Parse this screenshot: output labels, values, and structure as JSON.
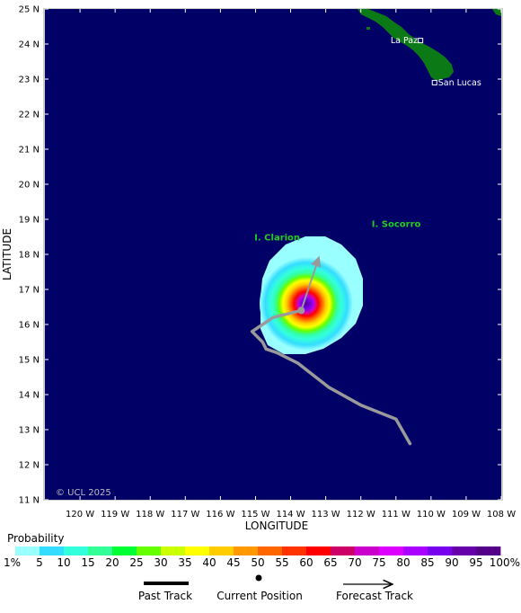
{
  "map": {
    "lat_labels": [
      "25 N",
      "24 N",
      "23 N",
      "22 N",
      "21 N",
      "20 N",
      "19 N",
      "18 N",
      "17 N",
      "16 N",
      "15 N",
      "14 N",
      "13 N",
      "12 N",
      "11 N"
    ],
    "lon_labels": [
      "120 W",
      "119 W",
      "118 W",
      "117 W",
      "116 W",
      "115 W",
      "114 W",
      "113 W",
      "112 W",
      "111 W",
      "110 W",
      "109 W",
      "108 W"
    ],
    "xlabel": "LONGITUDE",
    "ylabel": "LATITUDE",
    "extent": {
      "lon_west": -121,
      "lon_east": -108,
      "lat_south": 11,
      "lat_north": 25
    },
    "colors": {
      "ocean": "#000066",
      "land": "#0b7a16",
      "track": "#9a9a9a",
      "island_label": "#22cc22",
      "frame": "#cccccc"
    },
    "places": {
      "la_paz": {
        "label": "La Paz",
        "lon": -110.3,
        "lat": 24.1
      },
      "san_lucas": {
        "label": "San Lucas",
        "lon": -109.9,
        "lat": 22.9
      },
      "clarion": {
        "label": "I. Clarion",
        "lon": -114.7,
        "lat": 18.3
      },
      "socorro": {
        "label": "I. Socorro",
        "lon": -111.0,
        "lat": 18.7
      }
    },
    "copyright": "© UCL 2025",
    "past_track": [
      [
        -110.6,
        12.6
      ],
      [
        -111.0,
        13.3
      ],
      [
        -112.0,
        13.7
      ],
      [
        -112.9,
        14.2
      ],
      [
        -113.8,
        14.9
      ],
      [
        -114.4,
        15.2
      ],
      [
        -114.7,
        15.3
      ],
      [
        -114.8,
        15.5
      ],
      [
        -115.1,
        15.8
      ],
      [
        -114.8,
        16.0
      ],
      [
        -114.5,
        16.2
      ],
      [
        -113.7,
        16.4
      ]
    ],
    "current_position": {
      "lon": -113.7,
      "lat": 16.4
    },
    "forecast_track": [
      [
        -113.7,
        16.4
      ],
      [
        -113.2,
        17.9
      ]
    ],
    "probability_cone_center": {
      "lon": -113.7,
      "lat": 16.4
    }
  },
  "legend": {
    "title": "Probability",
    "labels": [
      "1%",
      "5",
      "10",
      "15",
      "20",
      "25",
      "30",
      "35",
      "40",
      "45",
      "50",
      "55",
      "60",
      "65",
      "70",
      "75",
      "80",
      "85",
      "90",
      "95",
      "100%"
    ],
    "colors": [
      "#99ffff",
      "#33ddff",
      "#33ffdd",
      "#33ff99",
      "#00ff33",
      "#66ff00",
      "#ccff00",
      "#ffff00",
      "#ffcc00",
      "#ff9900",
      "#ff6600",
      "#ff3300",
      "#ff0000",
      "#cc0066",
      "#cc00cc",
      "#dd00ff",
      "#aa00ff",
      "#7700ee",
      "#6600aa",
      "#550088"
    ]
  },
  "key": {
    "past_track": "Past Track",
    "current_position": "Current Position",
    "forecast_track": "Forecast Track"
  }
}
